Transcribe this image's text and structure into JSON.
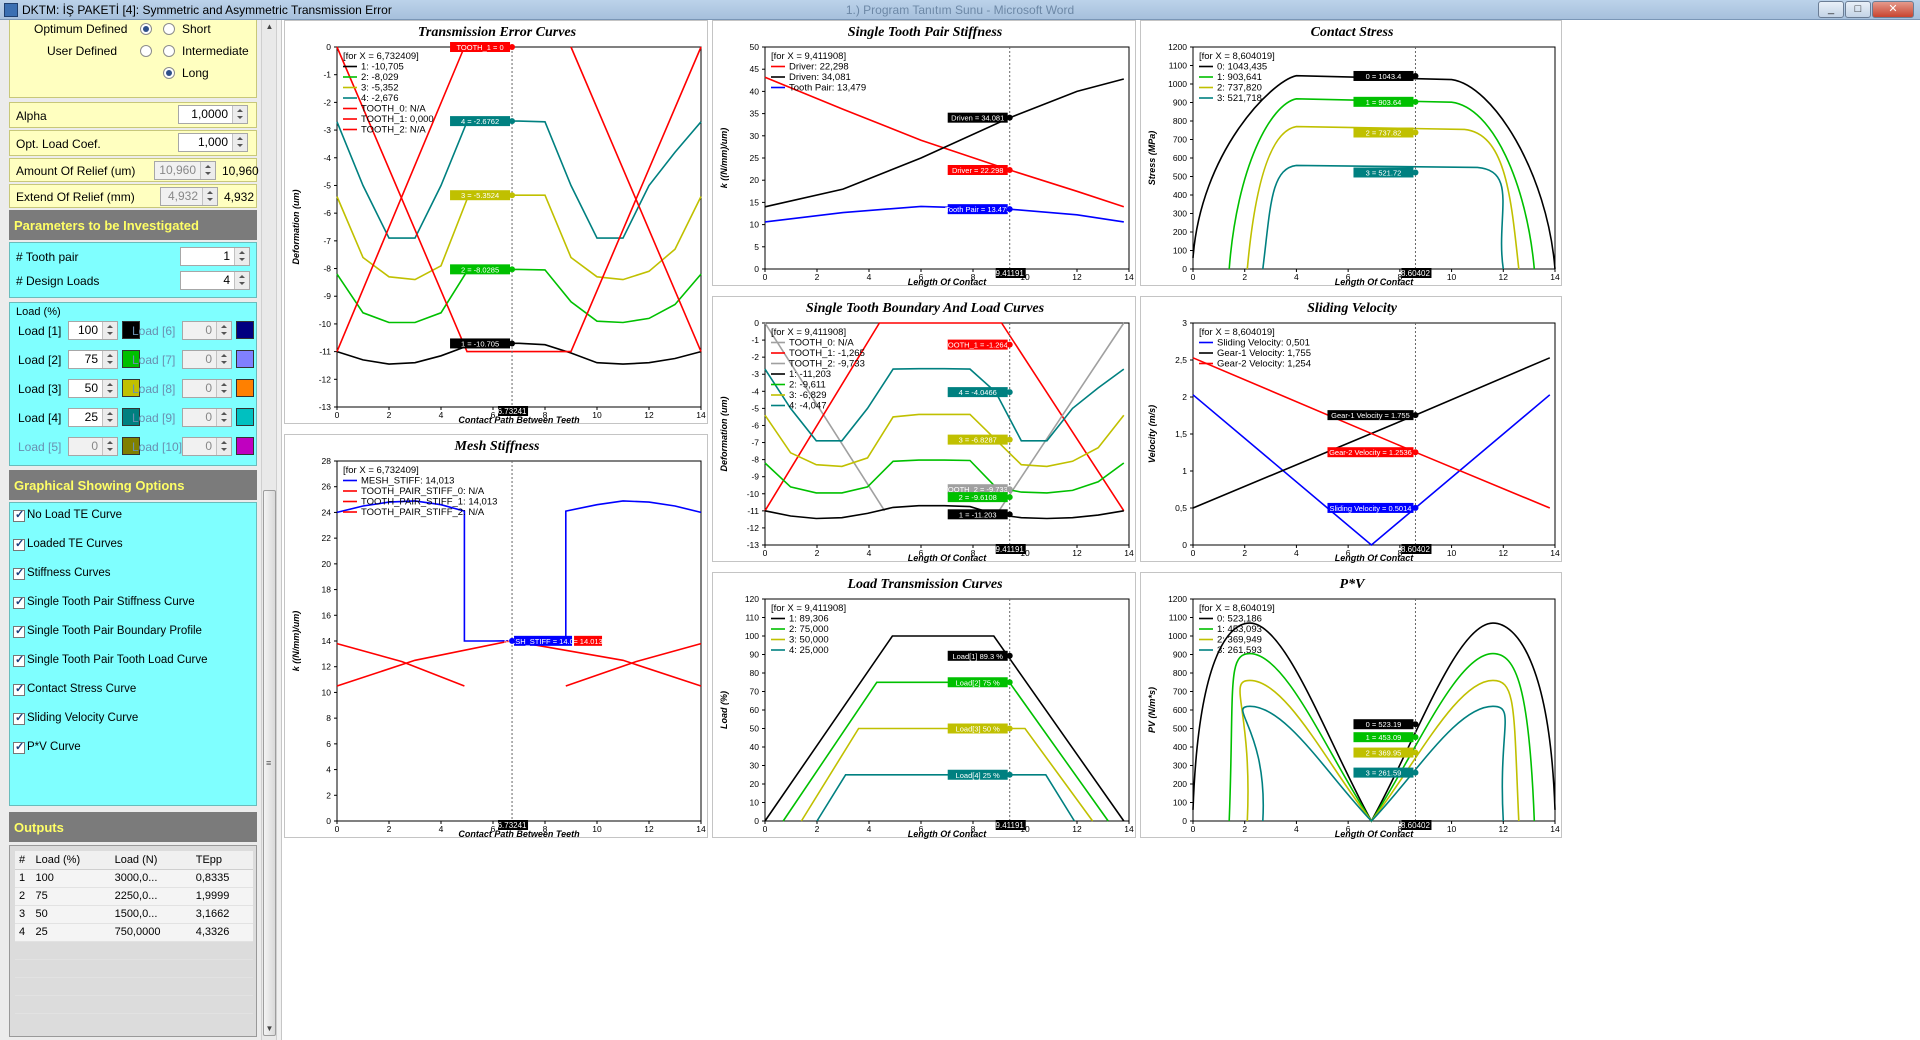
{
  "window": {
    "title": "DKTM: İŞ PAKETİ [4]:  Symmetric and Asymmetric Transmission Error",
    "title_faded": "1.) Program Tanıtım Sunu - Microsoft Word",
    "buttons": [
      "_",
      "□",
      "✕"
    ]
  },
  "left": {
    "relief_type": {
      "optimum": "Optimum Defined",
      "user": "User Defined",
      "short": "Short",
      "intermediate": "Intermediate",
      "long": "Long",
      "selected": "Long",
      "optimum_selected": true
    },
    "alpha": {
      "label": "Alpha",
      "value": "1,0000"
    },
    "opt_load": {
      "label": "Opt. Load Coef.",
      "value": "1,000"
    },
    "amount_relief": {
      "label": "Amount Of Relief (um)",
      "value": "10,960",
      "display": "10,960"
    },
    "extend_relief": {
      "label": "Extend Of Relief (mm)",
      "value": "4,932",
      "display": "4,932"
    },
    "params_header": "Parameters to be Investigated",
    "tooth_pair": {
      "label": "# Tooth pair",
      "value": "1"
    },
    "design_loads": {
      "label": "# Design Loads",
      "value": "4"
    },
    "load_group": "Load (%)",
    "loads": [
      {
        "label": "Load [1]",
        "value": "100",
        "color": "#000000",
        "enabled": true
      },
      {
        "label": "Load [2]",
        "value": "75",
        "color": "#00c000",
        "enabled": true
      },
      {
        "label": "Load [3]",
        "value": "50",
        "color": "#c0c000",
        "enabled": true
      },
      {
        "label": "Load [4]",
        "value": "25",
        "color": "#008080",
        "enabled": true
      },
      {
        "label": "Load [5]",
        "value": "0",
        "color": "#808000",
        "enabled": false
      },
      {
        "label": "Load [6]",
        "value": "0",
        "color": "#000080",
        "enabled": false
      },
      {
        "label": "Load [7]",
        "value": "0",
        "color": "#8080ff",
        "enabled": false
      },
      {
        "label": "Load [8]",
        "value": "0",
        "color": "#ff8000",
        "enabled": false
      },
      {
        "label": "Load [9]",
        "value": "0",
        "color": "#00c0c0",
        "enabled": false
      },
      {
        "label": "Load [10]",
        "value": "0",
        "color": "#c000c0",
        "enabled": false
      }
    ],
    "graph_header": "Graphical Showing Options",
    "options": [
      "No Load TE Curve",
      "Loaded TE Curves",
      "Stiffness Curves",
      "Single Tooth Pair Stiffness Curve",
      "Single Tooth Pair Boundary Profile",
      "Single Tooth Pair Tooth Load Curve",
      "Contact Stress Curve",
      "Sliding Velocity Curve",
      "P*V Curve"
    ],
    "outputs_header": "Outputs",
    "outputs_cols": [
      "#",
      "Load (%)",
      "Load (N)",
      "TEpp"
    ],
    "outputs_rows": [
      [
        "1",
        "100",
        "3000,0...",
        "0,8335"
      ],
      [
        "2",
        "75",
        "2250,0...",
        "1,9999"
      ],
      [
        "3",
        "50",
        "1500,0...",
        "3,1662"
      ],
      [
        "4",
        "25",
        "750,0000",
        "4,3326"
      ]
    ]
  },
  "charts": {
    "te": {
      "title": "Transmission Error Curves",
      "xlabel": "Contact Path Between Teeth",
      "ylabel": "Deformation (um)",
      "cursor": "6.73241",
      "legend": [
        "[for X = 6,732409]",
        "1: -10,705",
        "2: -8,029",
        "3: -5,352",
        "4: -2,676",
        "TOOTH_0: N/A",
        "TOOTH_1: 0,000",
        "TOOTH_2: N/A"
      ],
      "badges": [
        "TOOTH_1 = 0",
        "4 = -2.6762",
        "3 = -5.3524",
        "2 = -8.0285",
        "1 = -10.705"
      ]
    },
    "mesh": {
      "title": "Mesh Stiffness",
      "xlabel": "Contact Path Between Teeth",
      "ylabel": "k ((N/mm)/um)",
      "cursor": "6.73241",
      "legend": [
        "[for X = 6,732409]",
        "MESH_STIFF: 14,013",
        "TOOTH_PAIR_STIFF_0: N/A",
        "TOOTH_PAIR_STIFF_1: 14,013",
        "TOOTH_PAIR_STIFF_2: N/A"
      ],
      "badges": [
        "MESH_STIFF = 14.013",
        "= 14.013"
      ]
    },
    "stp": {
      "title": "Single Tooth Pair Stiffness",
      "xlabel": "Length Of Contact",
      "ylabel": "k ((N/mm)/um)",
      "cursor": "9.41191",
      "legend": [
        "[for X = 9,411908]",
        "Driver: 22,298",
        "Driven: 34,081",
        "Tooth Pair: 13,479"
      ],
      "badges": [
        "Driven = 34.081",
        "Driver = 22.298",
        "Tooth Pair = 13.479"
      ]
    },
    "stb": {
      "title": "Single Tooth Boundary And Load Curves",
      "xlabel": "Length Of Contact",
      "ylabel": "Deformation (um)",
      "cursor": "9.41191",
      "legend": [
        "[for X = 9,411908]",
        "TOOTH_0: N/A",
        "TOOTH_1: -1,265",
        "TOOTH_2: -9,733",
        "1: -11,203",
        "2: -9,611",
        "3: -6,829",
        "4: -4,047"
      ],
      "badges": [
        "TOOTH_1 = -1.2645",
        "4 = -4.0466",
        "3 = -6.8287",
        "TOOTH_2 = -9.7334",
        "2 = -9.6108",
        "1 = -11.203"
      ]
    },
    "ltc": {
      "title": "Load Transmission Curves",
      "xlabel": "Length Of Contact",
      "ylabel": "Load (%)",
      "cursor": "9.41191",
      "legend": [
        "[for X = 9,411908]",
        "1: 89,306",
        "2: 75,000",
        "3: 50,000",
        "4: 25,000"
      ],
      "badges": [
        "Load[1] 89.3 %",
        "Load[2] 75 %",
        "Load[3] 50 %",
        "Load[4] 25 %"
      ]
    },
    "cs": {
      "title": "Contact Stress",
      "xlabel": "Length Of Contact",
      "ylabel": "Stress (MPa)",
      "cursor": "8.60402",
      "legend": [
        "[for X = 8,604019]",
        "0: 1043,435",
        "1: 903,641",
        "2: 737,820",
        "3: 521,718"
      ],
      "badges": [
        "0 = 1043.4",
        "1 = 903.64",
        "2 = 737.82",
        "3 = 521.72"
      ]
    },
    "sv": {
      "title": "Sliding Velocity",
      "xlabel": "Length Of Contact",
      "ylabel": "Velocity (m/s)",
      "cursor": "8.60402",
      "legend": [
        "[for X = 8,604019]",
        "Sliding Velocity: 0,501",
        "Gear-1 Velocity: 1,755",
        "Gear-2 Velocity: 1,254"
      ],
      "badges": [
        "Gear-1 Velocity = 1.755",
        "Gear-2 Velocity = 1.2536",
        "Sliding Velocity = 0.5014"
      ]
    },
    "pv": {
      "title": "P*V",
      "xlabel": "Length Of Contact",
      "ylabel": "PV (N/m*s)",
      "cursor": "8.60402",
      "legend": [
        "[for X = 8,604019]",
        "0: 523,186",
        "1: 453,093",
        "2: 369,949",
        "3: 261,593"
      ],
      "badges": [
        "0 = 523.19",
        "1 = 453.09",
        "2 = 369.95",
        "3 = 261.59"
      ]
    }
  },
  "chart_data": [
    {
      "type": "line",
      "title": "Transmission Error Curves",
      "xlabel": "Contact Path Between Teeth",
      "ylabel": "Deformation (um)",
      "xlim": [
        0,
        14
      ],
      "ylim": [
        -13,
        0
      ],
      "series": [
        {
          "name": "1",
          "color": "#000000",
          "x": [
            0,
            1,
            2,
            3,
            4,
            5,
            6,
            7,
            8,
            9,
            10,
            11,
            12,
            13,
            14
          ],
          "values": [
            -11.0,
            -11.3,
            -11.45,
            -11.4,
            -11.15,
            -10.8,
            -10.7,
            -10.7,
            -10.75,
            -11.05,
            -11.4,
            -11.45,
            -11.4,
            -11.25,
            -11.0
          ]
        },
        {
          "name": "2",
          "color": "#00c000",
          "x": [
            0,
            1,
            2,
            3,
            4,
            5,
            6,
            7,
            8,
            9,
            10,
            11,
            12,
            13,
            14
          ],
          "values": [
            -8.2,
            -9.6,
            -9.95,
            -9.95,
            -9.6,
            -8.1,
            -8.03,
            -8.03,
            -8.05,
            -9.2,
            -9.9,
            -9.95,
            -9.8,
            -9.3,
            -8.2
          ]
        },
        {
          "name": "3",
          "color": "#c0c000",
          "x": [
            0,
            1,
            2,
            3,
            4,
            5,
            6,
            7,
            8,
            9,
            10,
            11,
            12,
            13,
            14
          ],
          "values": [
            -5.4,
            -7.6,
            -8.3,
            -8.4,
            -7.9,
            -5.5,
            -5.35,
            -5.35,
            -5.35,
            -7.6,
            -8.3,
            -8.4,
            -8.1,
            -7.3,
            -5.4
          ]
        },
        {
          "name": "4",
          "color": "#008080",
          "x": [
            0,
            1,
            2,
            3,
            4,
            5,
            6,
            7,
            8,
            9,
            10,
            11,
            12,
            13,
            14
          ],
          "values": [
            -2.7,
            -5.0,
            -6.9,
            -6.9,
            -5.0,
            -2.7,
            -2.676,
            -2.676,
            -2.7,
            -5.0,
            -6.9,
            -6.9,
            -5.0,
            -3.8,
            -2.7
          ]
        },
        {
          "name": "TOOTH_0",
          "color": "#ff0000",
          "x": [
            0,
            4.9
          ],
          "values": [
            -11.0,
            0
          ]
        },
        {
          "name": "TOOTH_1",
          "color": "#ff0000",
          "x": [
            0,
            5,
            9,
            14
          ],
          "values": [
            0,
            -11,
            -11,
            0
          ]
        },
        {
          "name": "TOOTH_2",
          "color": "#ff0000",
          "x": [
            9,
            14
          ],
          "values": [
            0,
            -11
          ]
        }
      ]
    },
    {
      "type": "line",
      "title": "Mesh Stiffness",
      "xlabel": "Contact Path Between Teeth",
      "ylabel": "k ((N/mm)/um)",
      "xlim": [
        0,
        14
      ],
      "ylim": [
        0,
        28
      ],
      "series": [
        {
          "name": "MESH_STIFF",
          "color": "#0000ff",
          "x": [
            0,
            1,
            2,
            3,
            4,
            4.9,
            4.9,
            6,
            6.7,
            7,
            8,
            8.8,
            8.8,
            10,
            11,
            12,
            13,
            14
          ],
          "values": [
            24.0,
            24.5,
            24.8,
            24.9,
            24.6,
            24.1,
            14.0,
            14.0,
            14.013,
            14.0,
            14.0,
            14.0,
            24.1,
            24.6,
            24.9,
            24.8,
            24.5,
            24.0
          ]
        },
        {
          "name": "TOOTH_PAIR_STIFF_0",
          "color": "#ff0000",
          "x": [
            0,
            2.5,
            4.9
          ],
          "values": [
            13.8,
            12.4,
            10.5
          ]
        },
        {
          "name": "TOOTH_PAIR_STIFF_1",
          "color": "#ff0000",
          "x": [
            0,
            3,
            6.7,
            11,
            14
          ],
          "values": [
            10.5,
            12.5,
            14.013,
            12.5,
            10.5
          ]
        },
        {
          "name": "TOOTH_PAIR_STIFF_2",
          "color": "#ff0000",
          "x": [
            8.8,
            11.5,
            14
          ],
          "values": [
            10.5,
            12.4,
            13.8
          ]
        }
      ]
    },
    {
      "type": "line",
      "title": "Single Tooth Pair Stiffness",
      "xlabel": "Length Of Contact",
      "ylabel": "k ((N/mm)/um)",
      "xlim": [
        0,
        14
      ],
      "ylim": [
        0,
        50
      ],
      "series": [
        {
          "name": "Driver",
          "color": "#ff0000",
          "x": [
            0,
            3,
            6,
            9.41,
            12,
            13.8
          ],
          "values": [
            43.2,
            36,
            29,
            22.298,
            17.5,
            14
          ]
        },
        {
          "name": "Driven",
          "color": "#000000",
          "x": [
            0,
            3,
            6,
            9.41,
            12,
            13.8
          ],
          "values": [
            14,
            18,
            25,
            34.081,
            40,
            42.8
          ]
        },
        {
          "name": "Tooth Pair",
          "color": "#0000ff",
          "x": [
            0,
            3,
            6,
            9.41,
            12,
            13.8
          ],
          "values": [
            10.6,
            12.7,
            14.1,
            13.479,
            12.2,
            10.6
          ]
        }
      ]
    },
    {
      "type": "line",
      "title": "Single Tooth Boundary And Load Curves",
      "xlabel": "Length Of Contact",
      "ylabel": "Deformation (um)",
      "xlim": [
        0,
        14
      ],
      "ylim": [
        -13,
        0
      ],
      "series": [
        {
          "name": "TOOTH_0",
          "color": "#a0a0a0",
          "x": [
            0,
            4.6
          ],
          "values": [
            0,
            -11
          ]
        },
        {
          "name": "TOOTH_1",
          "color": "#ff0000",
          "x": [
            0,
            4.4,
            9.1,
            13.8
          ],
          "values": [
            -11,
            0,
            0,
            -11
          ]
        },
        {
          "name": "TOOTH_2",
          "color": "#a0a0a0",
          "x": [
            9,
            13.8
          ],
          "values": [
            -11,
            0
          ]
        },
        {
          "name": "1",
          "color": "#000000",
          "values": [
            -11.0,
            -11.203
          ]
        },
        {
          "name": "2",
          "color": "#00c000",
          "values": [
            -8.2,
            -9.611
          ]
        },
        {
          "name": "3",
          "color": "#c0c000",
          "values": [
            -5.4,
            -6.829
          ]
        },
        {
          "name": "4",
          "color": "#008080",
          "values": [
            -2.7,
            -4.047
          ]
        }
      ]
    },
    {
      "type": "line",
      "title": "Load Transmission Curves",
      "xlabel": "Length Of Contact",
      "ylabel": "Load (%)",
      "xlim": [
        0,
        14
      ],
      "ylim": [
        0,
        120
      ],
      "series": [
        {
          "name": "1",
          "color": "#000000",
          "x": [
            0,
            4.9,
            8.8,
            13.8
          ],
          "values": [
            0,
            100,
            100,
            0
          ]
        },
        {
          "name": "2",
          "color": "#00c000",
          "x": [
            0.7,
            4.3,
            9.4,
            13.2
          ],
          "values": [
            0,
            75,
            75,
            0
          ]
        },
        {
          "name": "3",
          "color": "#c0c000",
          "x": [
            1.4,
            3.6,
            10,
            12.6
          ],
          "values": [
            0,
            50,
            50,
            0
          ]
        },
        {
          "name": "4",
          "color": "#008080",
          "x": [
            2,
            3.1,
            10.8,
            11.9
          ],
          "values": [
            0,
            25,
            25,
            0
          ]
        }
      ]
    },
    {
      "type": "line",
      "title": "Contact Stress",
      "xlabel": "Length Of Contact",
      "ylabel": "Stress (MPa)",
      "xlim": [
        0,
        14
      ],
      "ylim": [
        0,
        1200
      ],
      "series": [
        {
          "name": "0",
          "color": "#000000",
          "values": [
            60,
            1045,
            1043.4,
            60
          ]
        },
        {
          "name": "1",
          "color": "#00c000",
          "values": [
            0,
            920,
            903.64,
            0
          ]
        },
        {
          "name": "2",
          "color": "#c0c000",
          "values": [
            0,
            770,
            737.82,
            0
          ]
        },
        {
          "name": "3",
          "color": "#008080",
          "values": [
            0,
            560,
            521.72,
            0
          ]
        }
      ]
    },
    {
      "type": "line",
      "title": "Sliding Velocity",
      "xlabel": "Length Of Contact",
      "ylabel": "Velocity (m/s)",
      "xlim": [
        0,
        14
      ],
      "ylim": [
        0,
        3
      ],
      "series": [
        {
          "name": "Sliding Velocity",
          "color": "#0000ff",
          "x": [
            0,
            6.9,
            13.8
          ],
          "values": [
            2.03,
            0,
            2.03
          ]
        },
        {
          "name": "Gear-1 Velocity",
          "color": "#000000",
          "x": [
            0,
            8.6,
            13.8
          ],
          "values": [
            0.5,
            1.755,
            2.53
          ]
        },
        {
          "name": "Gear-2 Velocity",
          "color": "#ff0000",
          "x": [
            0,
            8.6,
            13.8
          ],
          "values": [
            2.53,
            1.254,
            0.5
          ]
        }
      ]
    },
    {
      "type": "line",
      "title": "P*V",
      "xlabel": "Length Of Contact",
      "ylabel": "PV (N/m*s)",
      "xlim": [
        0,
        14
      ],
      "ylim": [
        0,
        1200
      ],
      "series": [
        {
          "name": "0",
          "color": "#000000",
          "values": [
            60,
            1070,
            0,
            1070,
            60
          ]
        },
        {
          "name": "1",
          "color": "#00c000",
          "values": [
            0,
            905,
            0,
            905,
            0
          ]
        },
        {
          "name": "2",
          "color": "#c0c000",
          "values": [
            0,
            760,
            0,
            760,
            0
          ]
        },
        {
          "name": "3",
          "color": "#008080",
          "values": [
            0,
            620,
            0,
            620,
            0
          ]
        }
      ]
    }
  ]
}
